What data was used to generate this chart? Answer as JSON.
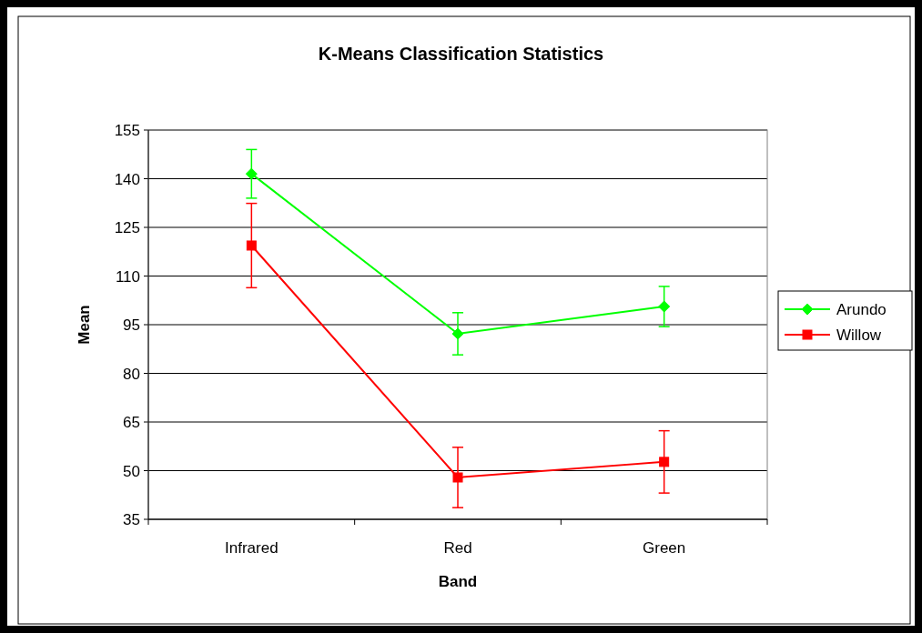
{
  "chart_data": {
    "type": "line",
    "title": "K-Means Classification Statistics",
    "xlabel": "Band",
    "ylabel": "Mean",
    "categories": [
      "Infrared",
      "Red",
      "Green"
    ],
    "ylim": [
      35,
      155
    ],
    "yticks": [
      35,
      50,
      65,
      80,
      95,
      110,
      125,
      140,
      155
    ],
    "grid": "y",
    "legend": "right",
    "series": [
      {
        "name": "Arundo",
        "color": "#00ff00",
        "marker": "diamond",
        "values": [
          141.5,
          92.2,
          100.6
        ],
        "errors": [
          7.5,
          6.5,
          6.2
        ]
      },
      {
        "name": "Willow",
        "color": "#ff0000",
        "marker": "square",
        "values": [
          119.4,
          47.9,
          52.7
        ],
        "errors": [
          13,
          9.3,
          9.6
        ]
      }
    ]
  }
}
